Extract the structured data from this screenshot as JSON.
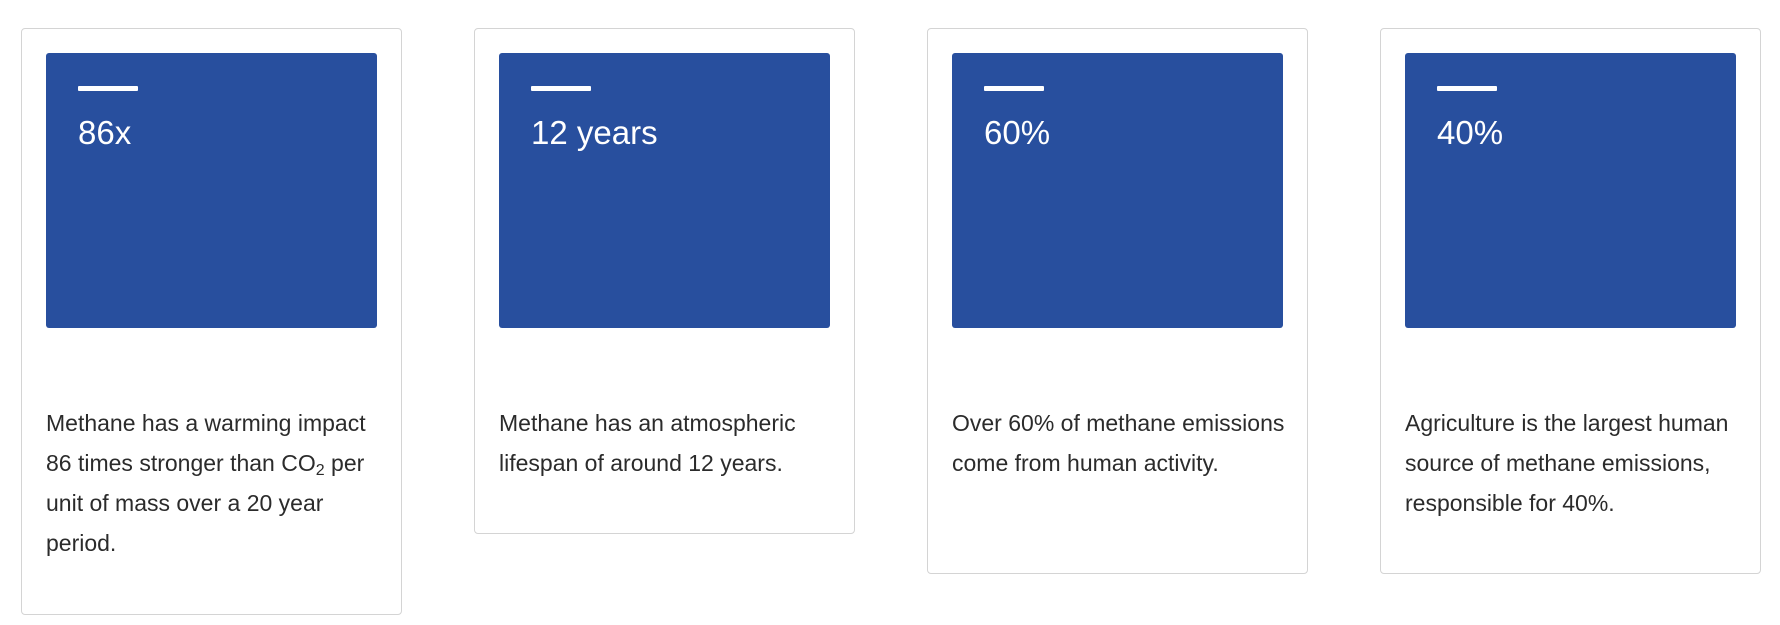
{
  "brand_color": "#284f9e",
  "cards": [
    {
      "stat": "86x",
      "description_before": "Methane has a warming impact 86 times stronger than CO",
      "description_sub": "2",
      "description_after": " per unit of mass over a 20 year period."
    },
    {
      "stat": "12 years",
      "description_before": "Methane has an atmospheric lifespan of around 12 years.",
      "description_sub": "",
      "description_after": ""
    },
    {
      "stat": "60%",
      "description_before": "Over 60% of methane emissions come from human activity.",
      "description_sub": "",
      "description_after": ""
    },
    {
      "stat": "40%",
      "description_before": "Agriculture is the largest human source of methane emissions, responsible for 40%.",
      "description_sub": "",
      "description_after": ""
    }
  ]
}
